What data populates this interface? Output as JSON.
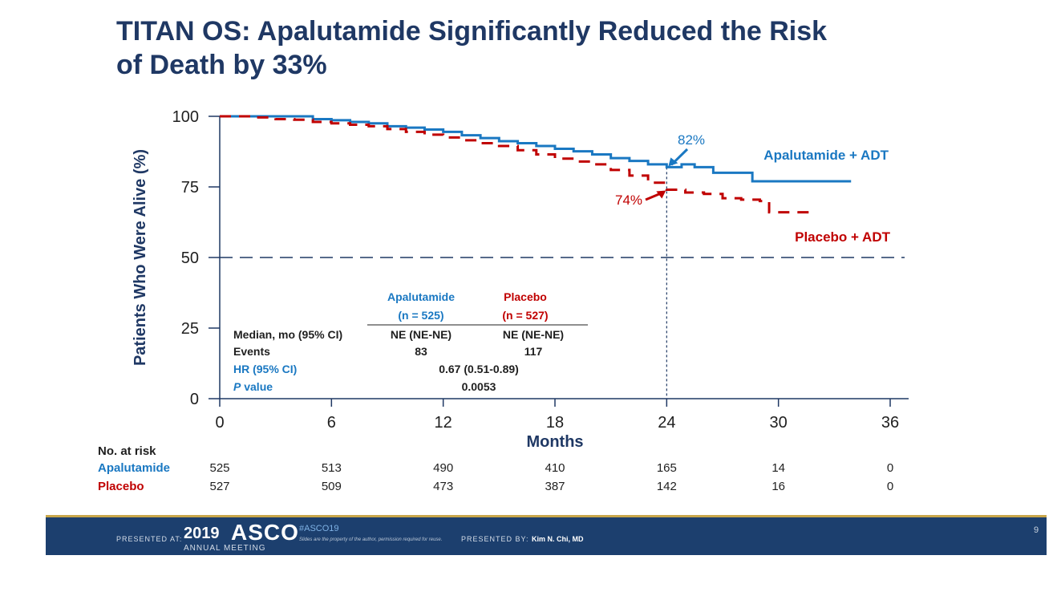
{
  "slide": {
    "title_line1": "TITAN OS: Apalutamide Significantly Reduced the Risk",
    "title_line2": "of Death by 33%",
    "page_number": "9"
  },
  "colors": {
    "title": "#1f3864",
    "apalutamide": "#1a78c2",
    "placebo": "#c00000",
    "axis": "#1f3864",
    "text": "#1f1f1f",
    "footer_bg": "#1c3f6e",
    "footer_rule": "#c8a64a"
  },
  "chart_data": {
    "type": "line",
    "ylabel": "Patients Who Were Alive (%)",
    "xlabel": "Months",
    "xlim": [
      0,
      36
    ],
    "ylim": [
      0,
      100
    ],
    "x_ticks": [
      0,
      6,
      12,
      18,
      24,
      30,
      36
    ],
    "y_ticks": [
      0,
      25,
      50,
      75,
      100
    ],
    "reference_line_y": 50,
    "vertical_marker_x": 24,
    "series": [
      {
        "name": "Apalutamide + ADT",
        "style": "solid",
        "points": [
          [
            0,
            100
          ],
          [
            2,
            100
          ],
          [
            4,
            100
          ],
          [
            5,
            99
          ],
          [
            6,
            98.6
          ],
          [
            7,
            98
          ],
          [
            8,
            97.5
          ],
          [
            9,
            96.5
          ],
          [
            10,
            96
          ],
          [
            11,
            95.3
          ],
          [
            12,
            94.5
          ],
          [
            13,
            93.3
          ],
          [
            14,
            92.3
          ],
          [
            15,
            91.2
          ],
          [
            16,
            90.5
          ],
          [
            17,
            89.5
          ],
          [
            18,
            88.5
          ],
          [
            19,
            87.6
          ],
          [
            20,
            86.5
          ],
          [
            21,
            85.2
          ],
          [
            22,
            84.2
          ],
          [
            23,
            83
          ],
          [
            24,
            82
          ],
          [
            24.8,
            83
          ],
          [
            25.5,
            82
          ],
          [
            26.5,
            80
          ],
          [
            28,
            80
          ],
          [
            28.6,
            77
          ],
          [
            31,
            77
          ],
          [
            33,
            77
          ],
          [
            33.9,
            77
          ]
        ]
      },
      {
        "name": "Placebo + ADT",
        "style": "dashed",
        "points": [
          [
            0,
            100
          ],
          [
            2,
            99.6
          ],
          [
            3,
            99
          ],
          [
            4,
            98.8
          ],
          [
            5,
            98
          ],
          [
            6,
            97.5
          ],
          [
            7,
            97
          ],
          [
            8,
            96.5
          ],
          [
            9,
            95.5
          ],
          [
            10,
            94.5
          ],
          [
            11,
            93.5
          ],
          [
            12,
            92.5
          ],
          [
            13,
            91.5
          ],
          [
            14,
            90.5
          ],
          [
            15,
            89.5
          ],
          [
            16,
            88
          ],
          [
            17,
            86.5
          ],
          [
            18,
            85
          ],
          [
            19,
            84
          ],
          [
            20,
            83
          ],
          [
            21,
            81
          ],
          [
            22,
            79
          ],
          [
            23,
            76.5
          ],
          [
            24,
            74
          ],
          [
            25,
            73
          ],
          [
            26,
            72.5
          ],
          [
            27,
            71
          ],
          [
            28,
            70.5
          ],
          [
            29,
            70
          ],
          [
            29.5,
            66
          ],
          [
            30,
            66
          ],
          [
            32,
            66
          ]
        ]
      }
    ],
    "annotations": [
      {
        "text": "82%",
        "series": "Apalutamide + ADT",
        "x": 24,
        "y": 82
      },
      {
        "text": "74%",
        "series": "Placebo + ADT",
        "x": 24,
        "y": 74
      }
    ],
    "legend_position": "right",
    "grid": false
  },
  "stats_table": {
    "col_apa_line1": "Apalutamide",
    "col_apa_line2": "(n = 525)",
    "col_pla_line1": "Placebo",
    "col_pla_line2": "(n = 527)",
    "rows": [
      {
        "label": "Median, mo (95% CI)",
        "apa": "NE (NE-NE)",
        "pla": "NE (NE-NE)"
      },
      {
        "label": "Events",
        "apa": "83",
        "pla": "117"
      }
    ],
    "hr_label": "HR (95% CI)",
    "hr_value": "0.67 (0.51-0.89)",
    "p_label_italic": "P",
    "p_label_rest": " value",
    "p_value": "0.0053"
  },
  "at_risk": {
    "header": "No. at risk",
    "rows": [
      {
        "label": "Apalutamide",
        "values": [
          "525",
          "513",
          "490",
          "410",
          "165",
          "14",
          "0"
        ]
      },
      {
        "label": "Placebo",
        "values": [
          "527",
          "509",
          "473",
          "387",
          "142",
          "16",
          "0"
        ]
      }
    ]
  },
  "footer": {
    "presented_at": "PRESENTED AT:",
    "year": "2019",
    "asco": "ASCO",
    "meeting": "ANNUAL MEETING",
    "hashtag": "#ASCO19",
    "note": "Slides are the property of the author, permission required for reuse.",
    "presented_by": "PRESENTED BY:",
    "presenter": "Kim N. Chi, MD"
  }
}
